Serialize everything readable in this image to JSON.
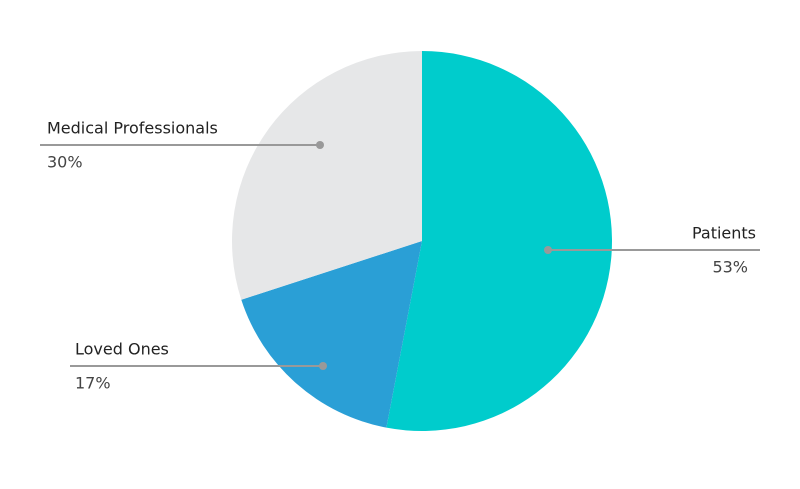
{
  "chart_data": {
    "type": "pie",
    "categories": [
      "Patients",
      "Loved Ones",
      "Medical Professionals"
    ],
    "values": [
      53,
      17,
      30
    ],
    "value_labels": [
      "53%",
      "17%",
      "30%"
    ],
    "colors": [
      "#00cccc",
      "#2a9fd6",
      "#e6e7e8"
    ]
  }
}
